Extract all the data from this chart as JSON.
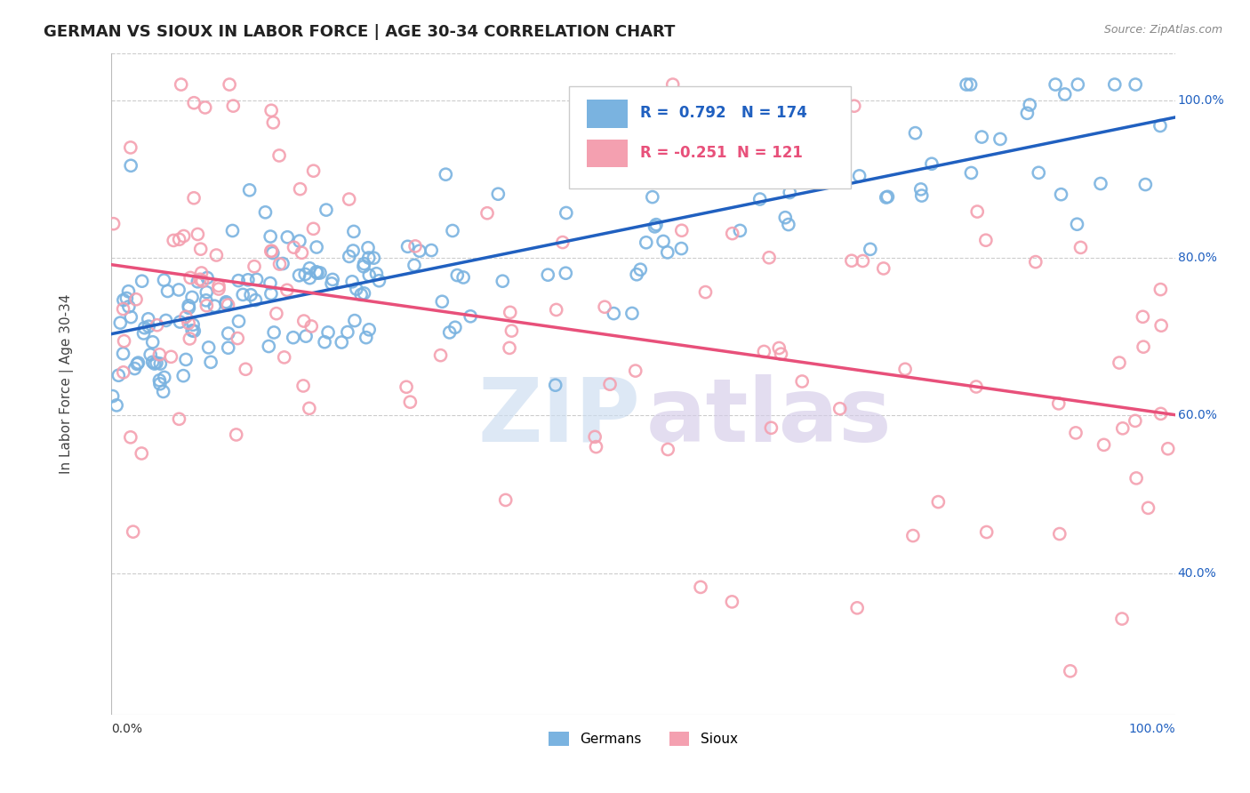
{
  "title": "GERMAN VS SIOUX IN LABOR FORCE | AGE 30-34 CORRELATION CHART",
  "source": "Source: ZipAtlas.com",
  "ylabel": "In Labor Force | Age 30-34",
  "xlim": [
    0.0,
    1.0
  ],
  "ylim": [
    0.22,
    1.06
  ],
  "ytick_labels": [
    "40.0%",
    "60.0%",
    "80.0%",
    "100.0%"
  ],
  "ytick_values": [
    0.4,
    0.6,
    0.8,
    1.0
  ],
  "xtick_labels": [
    "0.0%",
    "100.0%"
  ],
  "german_color": "#7ab3e0",
  "sioux_color": "#f4a0b0",
  "german_line_color": "#2060c0",
  "sioux_line_color": "#e8507a",
  "german_R": 0.792,
  "german_N": 174,
  "sioux_R": -0.251,
  "sioux_N": 121,
  "background_color": "#ffffff",
  "grid_color": "#cccccc",
  "title_fontsize": 13,
  "legend_fontsize": 12
}
